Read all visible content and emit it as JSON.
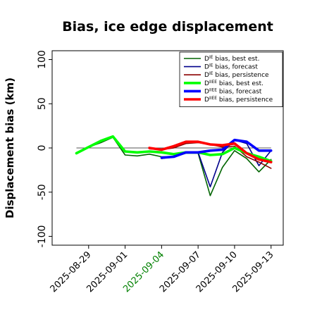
{
  "chart_data": {
    "type": "line",
    "title": "Bias, ice edge displacement",
    "xlabel": "",
    "ylabel": "Displacement bias (km)",
    "ylim": [
      -110,
      110
    ],
    "xlim": [
      "2025-08-26",
      "2025-09-14"
    ],
    "yticks": [
      -100,
      -50,
      0,
      50,
      100
    ],
    "xticks": [
      {
        "date": "2025-08-29",
        "label": "2025-08-29",
        "color": "#000000"
      },
      {
        "date": "2025-09-01",
        "label": "2025-09-01",
        "color": "#000000"
      },
      {
        "date": "2025-09-04",
        "label": "2025-09-04",
        "color": "#008000"
      },
      {
        "date": "2025-09-07",
        "label": "2025-09-07",
        "color": "#000000"
      },
      {
        "date": "2025-09-10",
        "label": "2025-09-10",
        "color": "#000000"
      },
      {
        "date": "2025-09-13",
        "label": "2025-09-13",
        "color": "#000000"
      }
    ],
    "zero_line": true,
    "grid": false,
    "legend_position": "top-right",
    "series": [
      {
        "name_prefix": "D",
        "name_sup": "IE",
        "name_suffix": " bias, best est.",
        "color": "#006400",
        "width": 1.6,
        "x": [
          "2025-08-28",
          "2025-08-29",
          "2025-08-30",
          "2025-08-31",
          "2025-09-01",
          "2025-09-02",
          "2025-09-03",
          "2025-09-04",
          "2025-09-05",
          "2025-09-06",
          "2025-09-07",
          "2025-09-08",
          "2025-09-09",
          "2025-09-10",
          "2025-09-11",
          "2025-09-12",
          "2025-09-13"
        ],
        "y": [
          -6,
          1,
          6,
          12,
          -8,
          -9,
          -7,
          -10,
          -10,
          -6,
          -6,
          -54,
          -22,
          -3,
          -12,
          -27,
          -13
        ]
      },
      {
        "name_prefix": "D",
        "name_sup": "IE",
        "name_suffix": " bias, forecast",
        "color": "#00008b",
        "width": 1.6,
        "x": [
          "2025-09-04",
          "2025-09-05",
          "2025-09-06",
          "2025-09-07",
          "2025-09-08",
          "2025-09-09",
          "2025-09-10",
          "2025-09-11",
          "2025-09-12",
          "2025-09-13"
        ],
        "y": [
          -12,
          -10,
          -5,
          -5,
          -44,
          -5,
          9,
          5,
          -20,
          -3
        ]
      },
      {
        "name_prefix": "D",
        "name_sup": "IE",
        "name_suffix": " bias, persistence",
        "color": "#8b0000",
        "width": 1.6,
        "x": [
          "2025-09-03",
          "2025-09-04",
          "2025-09-05",
          "2025-09-06",
          "2025-09-07",
          "2025-09-08",
          "2025-09-09",
          "2025-09-10",
          "2025-09-11",
          "2025-09-12",
          "2025-09-13"
        ],
        "y": [
          -1,
          -2,
          0,
          5,
          6,
          4,
          1,
          2,
          -10,
          -16,
          -23
        ]
      },
      {
        "name_prefix": "D",
        "name_sup": "IIEE",
        "name_suffix": " bias, best est.",
        "color": "#00ff00",
        "width": 3.6,
        "x": [
          "2025-08-28",
          "2025-08-29",
          "2025-08-30",
          "2025-08-31",
          "2025-09-01",
          "2025-09-02",
          "2025-09-03",
          "2025-09-04",
          "2025-09-05",
          "2025-09-06",
          "2025-09-07",
          "2025-09-08",
          "2025-09-09",
          "2025-09-10",
          "2025-09-11",
          "2025-09-12",
          "2025-09-13"
        ],
        "y": [
          -6,
          1,
          8,
          13,
          -4,
          -5,
          -4,
          -5,
          -7,
          -5,
          -5,
          -8,
          -7,
          0,
          -6,
          -10,
          -15
        ]
      },
      {
        "name_prefix": "D",
        "name_sup": "IIEE",
        "name_suffix": " bias, forecast",
        "color": "#0000ff",
        "width": 3.6,
        "x": [
          "2025-09-04",
          "2025-09-05",
          "2025-09-06",
          "2025-09-07",
          "2025-09-08",
          "2025-09-09",
          "2025-09-10",
          "2025-09-11",
          "2025-09-12",
          "2025-09-13"
        ],
        "y": [
          -11,
          -10,
          -5,
          -5,
          -3,
          -2,
          9,
          7,
          -3,
          -3
        ]
      },
      {
        "name_prefix": "D",
        "name_sup": "IIEE",
        "name_suffix": " bias, persistence",
        "color": "#ff0000",
        "width": 3.6,
        "x": [
          "2025-09-03",
          "2025-09-04",
          "2025-09-05",
          "2025-09-06",
          "2025-09-07",
          "2025-09-08",
          "2025-09-09",
          "2025-09-10",
          "2025-09-11",
          "2025-09-12",
          "2025-09-13"
        ],
        "y": [
          0,
          -2,
          2,
          7,
          7,
          4,
          3,
          5,
          -6,
          -13,
          -16
        ]
      }
    ]
  }
}
